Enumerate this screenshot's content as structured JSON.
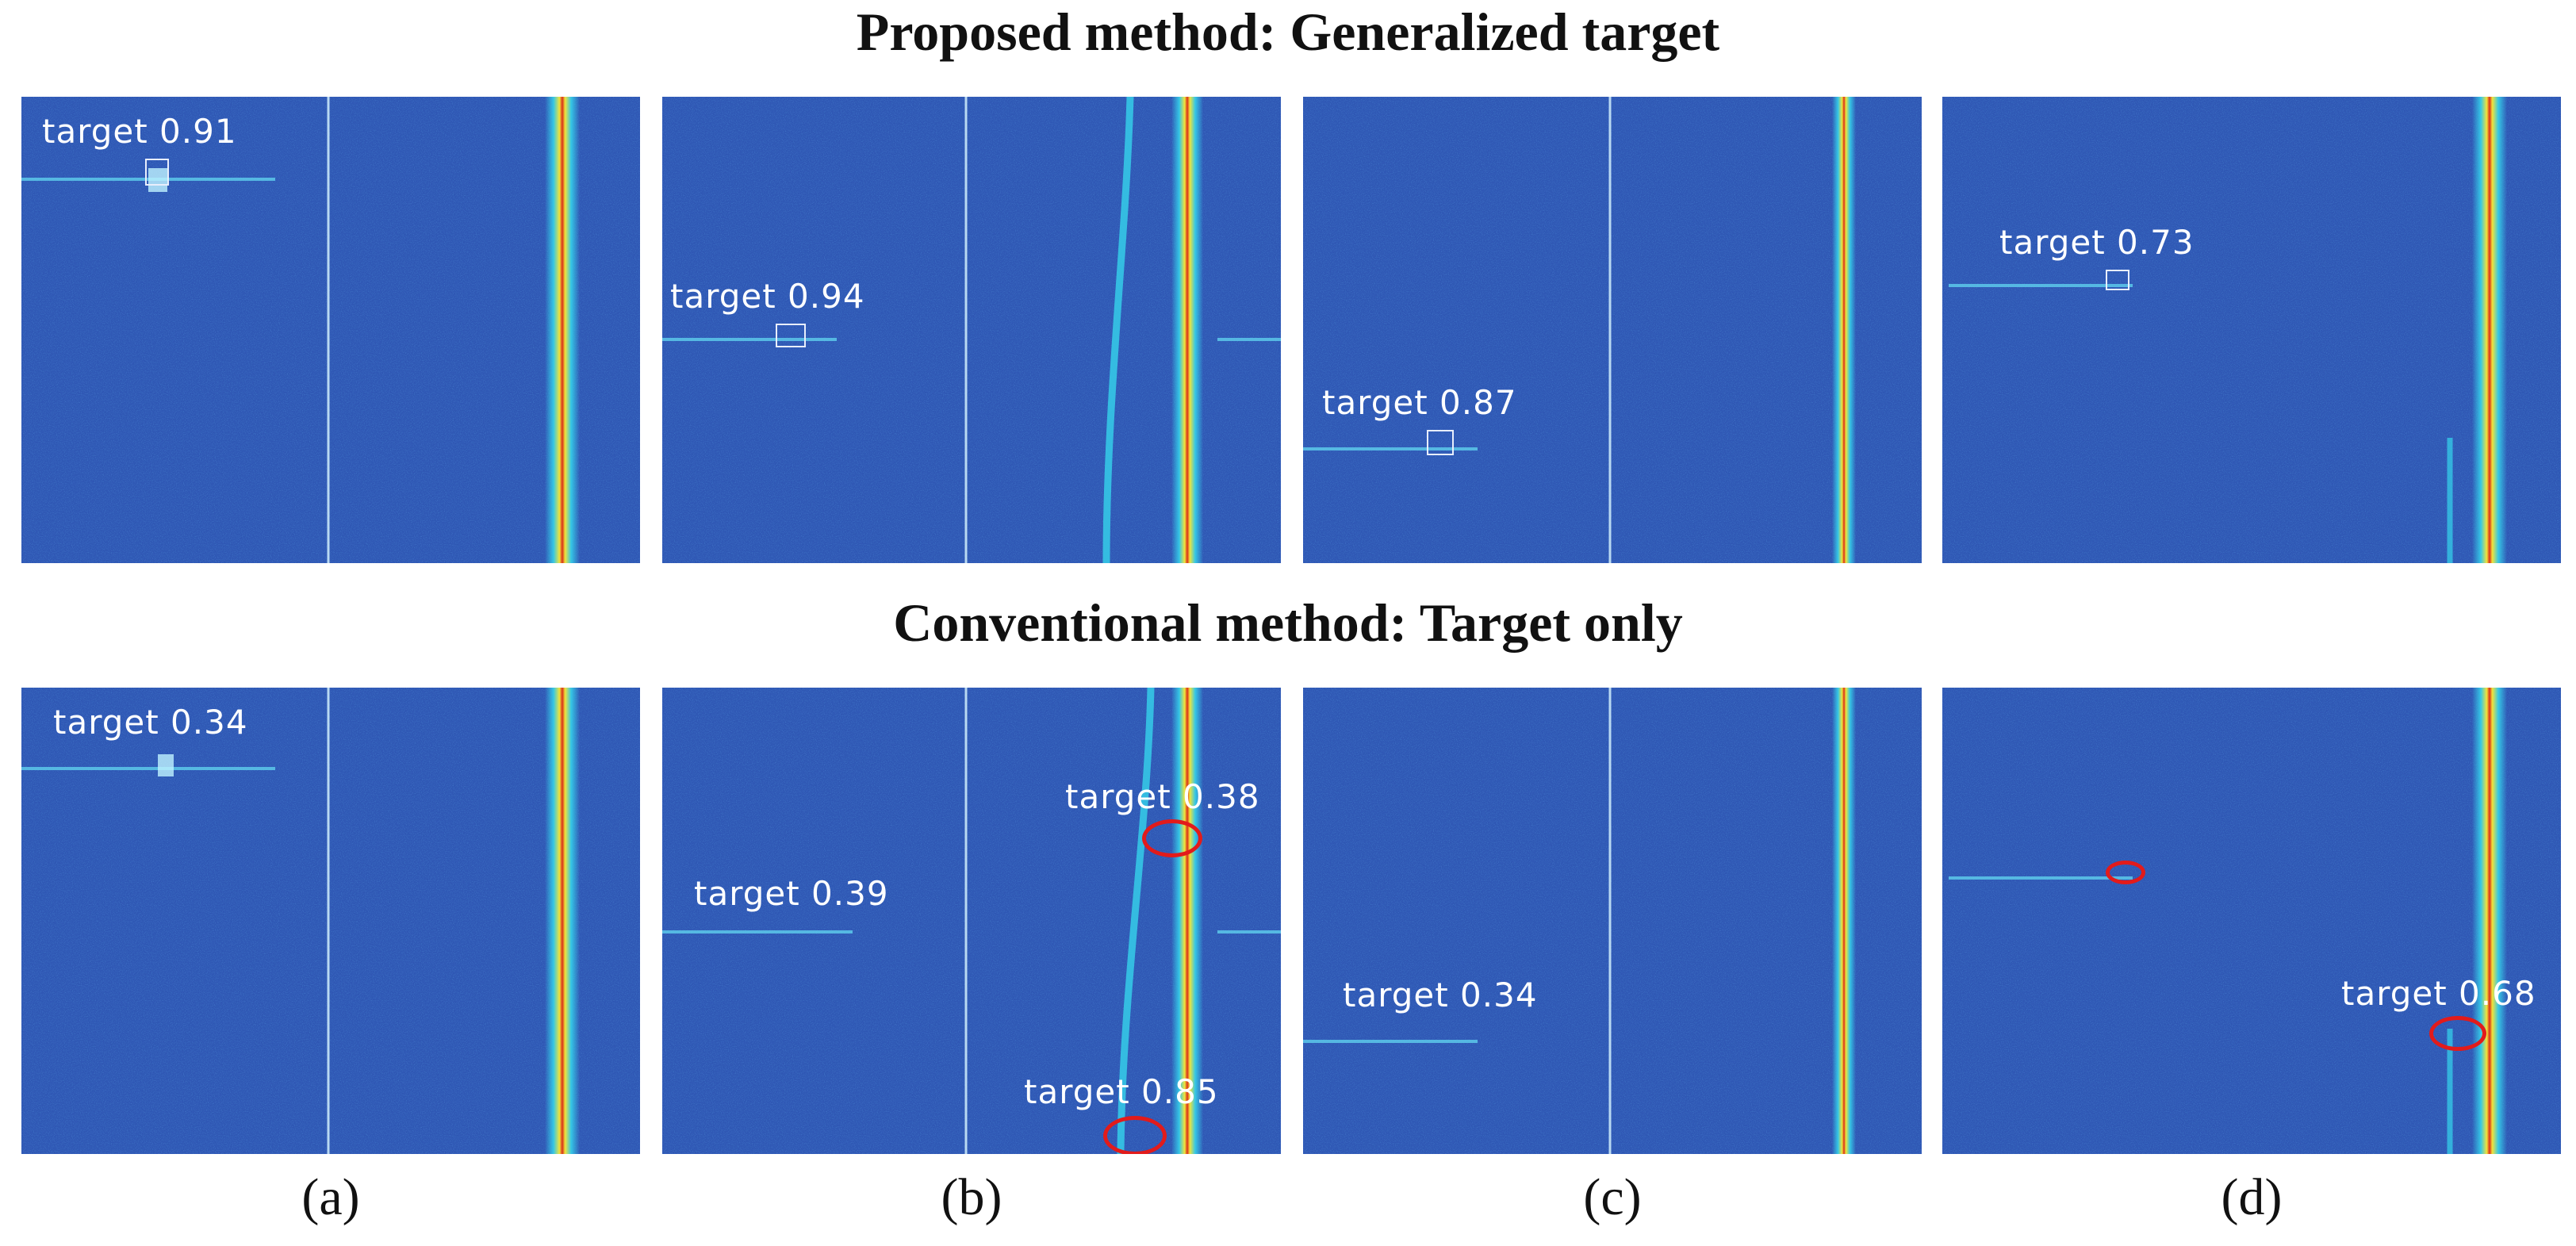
{
  "figure": {
    "title_top": "Proposed method: Generalized target",
    "title_bottom": "Conventional method: Target only",
    "captions": [
      "(a)",
      "(b)",
      "(c)",
      "(d)"
    ],
    "colors": {
      "background": "#2f57b4",
      "streak_core": "#d92f1a",
      "streak_mid": "#f1e43a",
      "streak_edge": "#35c7e6",
      "detection_box": "#e8eefc",
      "highlight_ellipse": "#e21b1b"
    }
  },
  "detections": {
    "top_a": "target 0.91",
    "top_b": "target 0.94",
    "top_c": "target 0.87",
    "top_d": "target 0.73",
    "bottom_a": "target 0.34",
    "bottom_b1": "target 0.38",
    "bottom_b2": "target 0.39",
    "bottom_b3": "target 0.85",
    "bottom_c": "target 0.34",
    "bottom_d": "target 0.68"
  }
}
